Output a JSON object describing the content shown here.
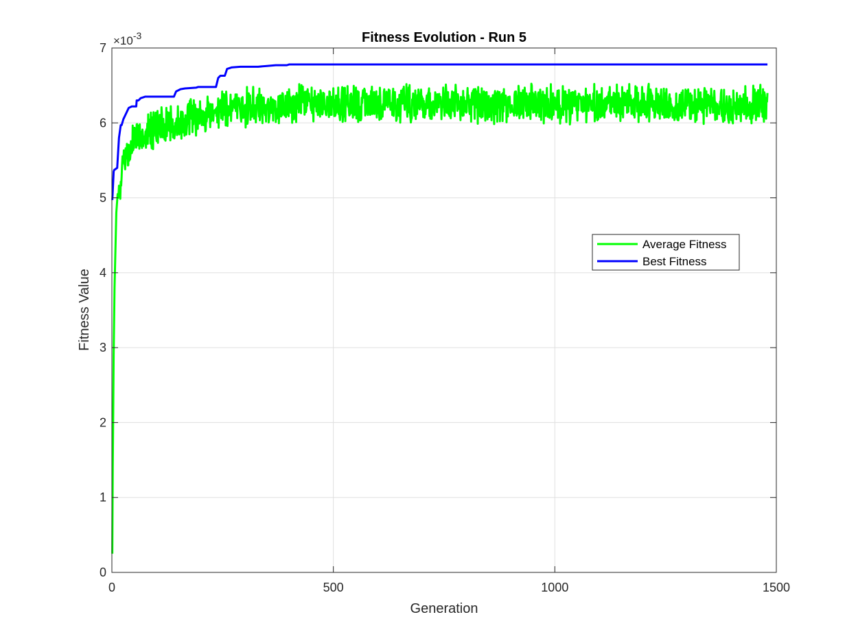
{
  "chart_data": {
    "type": "line",
    "title": "Fitness Evolution - Run 5",
    "xlabel": "Generation",
    "ylabel": "Fitness Value",
    "xlim": [
      0,
      1500
    ],
    "ylim": [
      0,
      7
    ],
    "y_exponent_label": {
      "base": "10",
      "exponent": "-3",
      "prefix": "×"
    },
    "x_ticks": [
      0,
      500,
      1000,
      1500
    ],
    "x_tick_labels": [
      "0",
      "500",
      "1000",
      "1500"
    ],
    "y_ticks": [
      0,
      1,
      2,
      3,
      4,
      5,
      6,
      7
    ],
    "y_tick_labels": [
      "0",
      "1",
      "2",
      "3",
      "4",
      "5",
      "6",
      "7"
    ],
    "grid": true,
    "legend_position": "right",
    "series": [
      {
        "name": "Average Fitness",
        "color": "#00ff00",
        "noise": {
          "seed": 5,
          "mean_late": 6.25,
          "amplitude": 0.22,
          "from_x": 60,
          "to_x": 1480
        },
        "x": [
          1,
          2,
          4,
          6,
          8,
          10,
          13,
          16,
          20,
          25,
          30,
          35,
          40,
          45,
          50,
          60,
          70,
          80,
          90,
          100,
          120,
          140,
          160,
          180,
          200,
          220,
          240,
          260,
          280,
          300,
          350,
          400
        ],
        "y": [
          0.25,
          1.4,
          2.9,
          3.8,
          4.3,
          4.8,
          5.05,
          5.1,
          5.2,
          5.45,
          5.5,
          5.6,
          5.65,
          5.75,
          5.8,
          5.85,
          5.85,
          5.9,
          5.9,
          5.95,
          5.95,
          6.0,
          6.0,
          6.05,
          6.1,
          6.1,
          6.15,
          6.15,
          6.2,
          6.2,
          6.22,
          6.25
        ]
      },
      {
        "name": "Best Fitness",
        "color": "#0000ff",
        "x": [
          1,
          4,
          5,
          12,
          14,
          16,
          20,
          22,
          26,
          30,
          34,
          38,
          45,
          55,
          56,
          60,
          65,
          75,
          140,
          145,
          155,
          165,
          190,
          195,
          235,
          240,
          245,
          255,
          260,
          270,
          290,
          330,
          350,
          370,
          395,
          400,
          1480
        ],
        "y": [
          4.97,
          5.35,
          5.37,
          5.4,
          5.6,
          5.8,
          5.97,
          5.97,
          6.05,
          6.1,
          6.15,
          6.2,
          6.22,
          6.22,
          6.3,
          6.3,
          6.33,
          6.35,
          6.35,
          6.42,
          6.45,
          6.46,
          6.47,
          6.48,
          6.48,
          6.6,
          6.63,
          6.63,
          6.72,
          6.74,
          6.75,
          6.75,
          6.76,
          6.77,
          6.77,
          6.78,
          6.78
        ]
      }
    ]
  },
  "legend": {
    "items": [
      {
        "label": "Average Fitness",
        "color": "#00ff00"
      },
      {
        "label": "Best Fitness",
        "color": "#0000ff"
      }
    ]
  }
}
